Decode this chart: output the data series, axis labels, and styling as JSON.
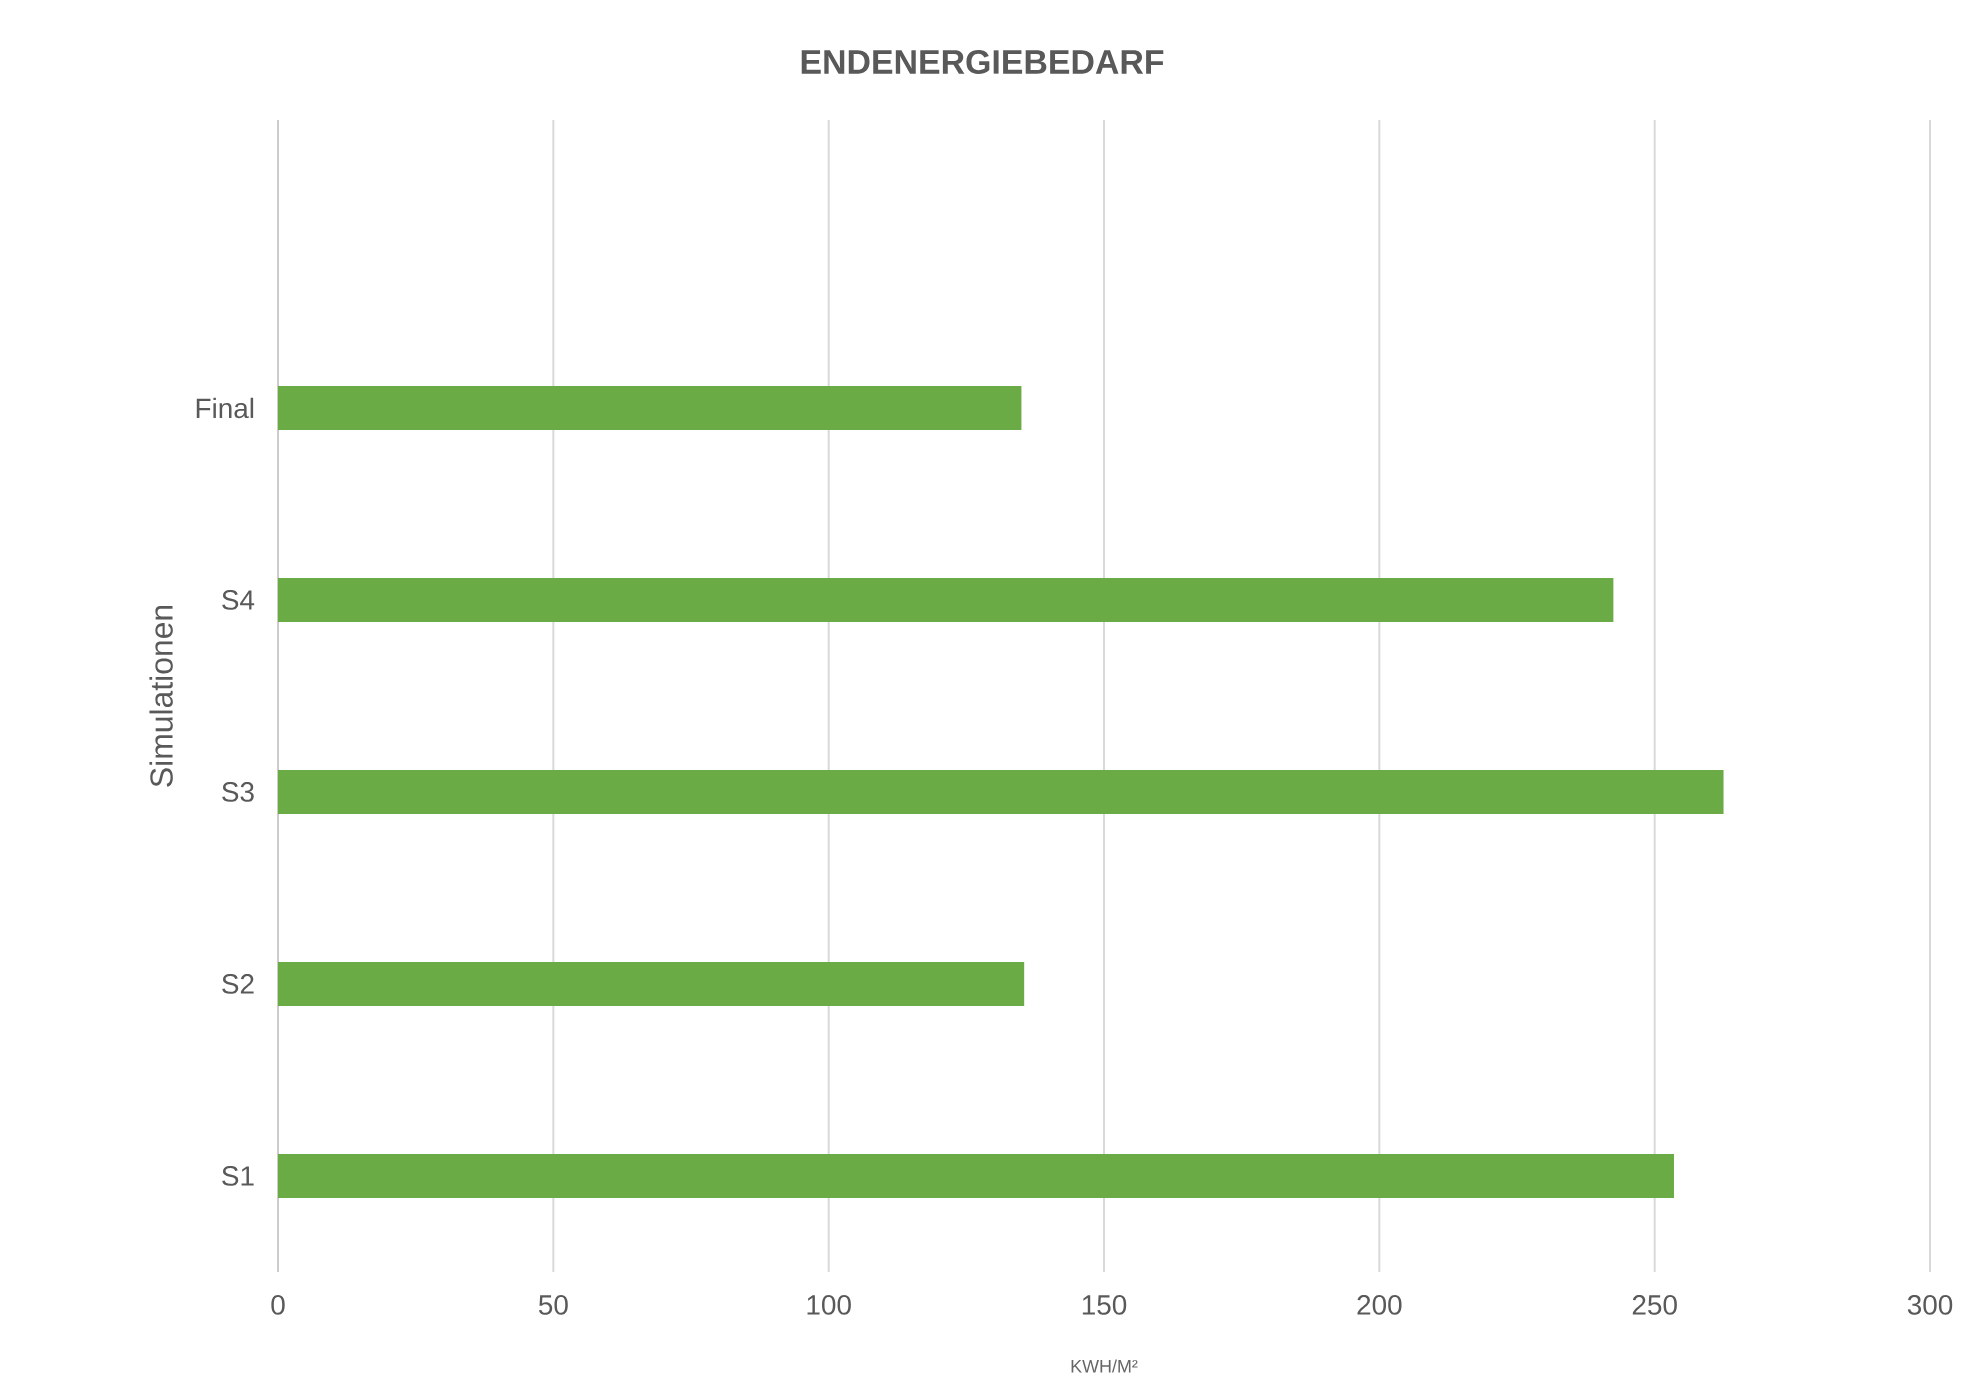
{
  "chart_data": {
    "type": "bar",
    "orientation": "horizontal",
    "title": "ENDENERGIEBEDARF",
    "xlabel": "KWH/M²",
    "ylabel": "Simulationen",
    "categories": [
      null,
      "Final",
      "S4",
      "S3",
      "S2",
      "S1"
    ],
    "values": [
      null,
      135,
      242.5,
      262.5,
      135.5,
      253.5
    ],
    "color": "#6aab45",
    "xlim": [
      0,
      300
    ],
    "xticks": [
      0,
      50,
      100,
      150,
      200,
      250,
      300
    ],
    "grid": "x"
  }
}
